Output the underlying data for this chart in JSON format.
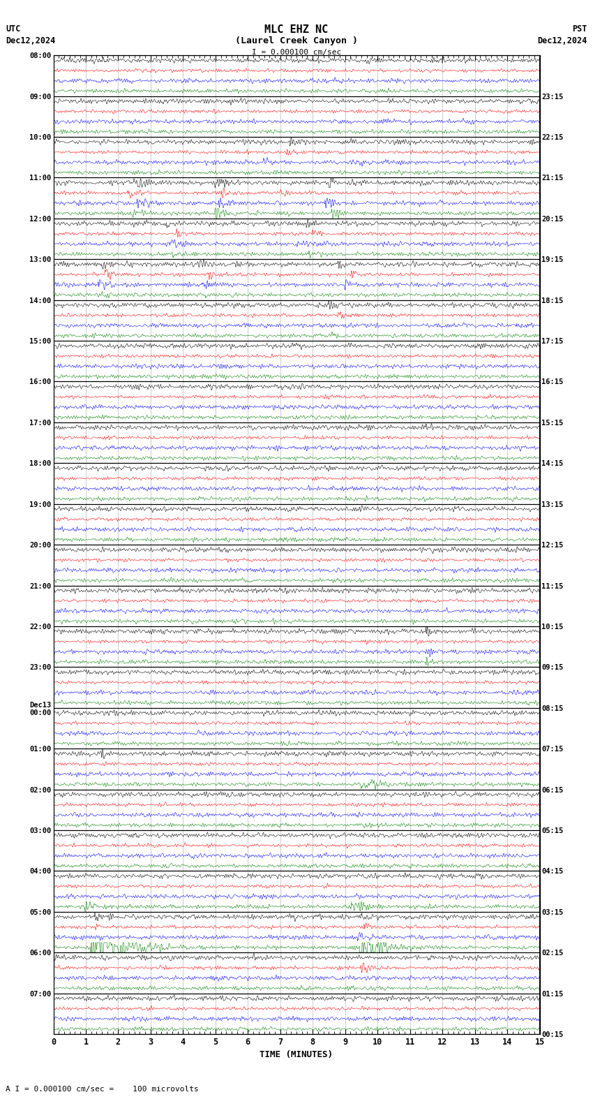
{
  "title_line1": "MLC EHZ NC",
  "title_line2": "(Laurel Creek Canyon )",
  "scale_text": "I = 0.000100 cm/sec",
  "left_header": "UTC",
  "left_date": "Dec12,2024",
  "right_header": "PST",
  "right_date": "Dec12,2024",
  "bottom_label": "TIME (MINUTES)",
  "bottom_note": "A I = 0.000100 cm/sec =    100 microvolts",
  "utc_labels": [
    "08:00",
    "09:00",
    "10:00",
    "11:00",
    "12:00",
    "13:00",
    "14:00",
    "15:00",
    "16:00",
    "17:00",
    "18:00",
    "19:00",
    "20:00",
    "21:00",
    "22:00",
    "23:00",
    "Dec13\n00:00",
    "01:00",
    "02:00",
    "03:00",
    "04:00",
    "05:00",
    "06:00",
    "07:00"
  ],
  "pst_labels": [
    "00:15",
    "01:15",
    "02:15",
    "03:15",
    "04:15",
    "05:15",
    "06:15",
    "07:15",
    "08:15",
    "09:15",
    "10:15",
    "11:15",
    "12:15",
    "13:15",
    "14:15",
    "15:15",
    "16:15",
    "17:15",
    "18:15",
    "19:15",
    "20:15",
    "21:15",
    "22:15",
    "23:15"
  ],
  "n_rows": 24,
  "traces_per_row": 4,
  "colors": [
    "black",
    "red",
    "blue",
    "green"
  ],
  "x_ticks": [
    0,
    1,
    2,
    3,
    4,
    5,
    6,
    7,
    8,
    9,
    10,
    11,
    12,
    13,
    14,
    15
  ],
  "x_min": 0,
  "x_max": 15,
  "figsize": [
    8.5,
    15.84
  ],
  "dpi": 100,
  "bg_color": "white",
  "grid_color": "#888888"
}
